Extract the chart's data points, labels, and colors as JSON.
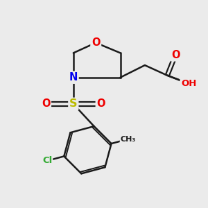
{
  "background_color": "#ebebeb",
  "atom_colors": {
    "O": "#ee0000",
    "N": "#0000ee",
    "S": "#bbbb00",
    "Cl": "#33aa33",
    "C": "#1a1a1a",
    "H": "#888888"
  },
  "bond_color": "#1a1a1a",
  "figsize": [
    3.0,
    3.0
  ],
  "dpi": 100
}
